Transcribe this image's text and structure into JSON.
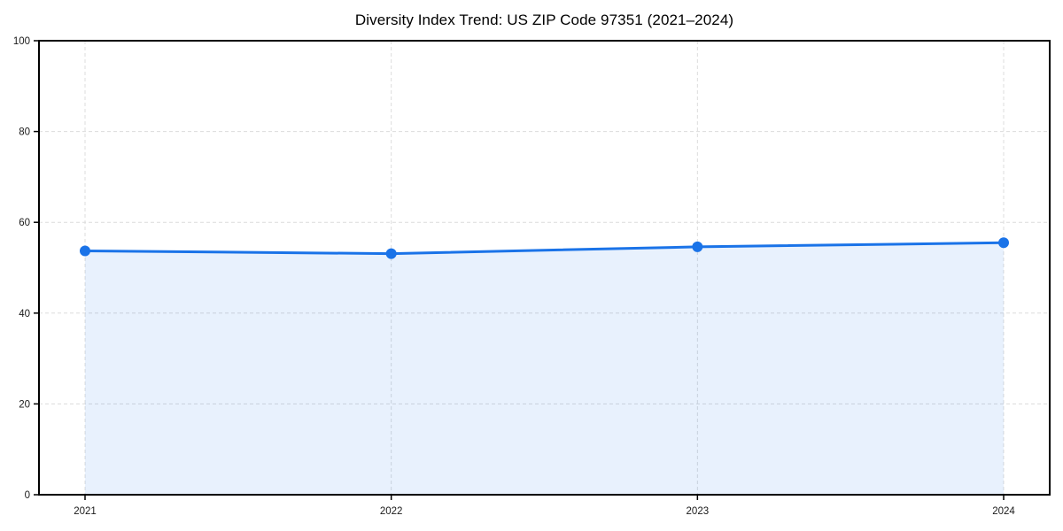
{
  "page": {
    "background_color": "#ffffff"
  },
  "chart_data": {
    "type": "line",
    "title": "Diversity Index Trend: US ZIP Code 97351 (2021–2024)",
    "x": [
      2021,
      2022,
      2023,
      2024
    ],
    "series": [
      {
        "name": "Diversity Index",
        "values": [
          53.7,
          53.1,
          54.6,
          55.5
        ]
      }
    ],
    "xlabel": "",
    "ylabel": "",
    "ylim": [
      0,
      100
    ],
    "yticks": [
      0,
      20,
      40,
      60,
      80,
      100
    ],
    "grid": "dashed-both-axes",
    "legend": "none",
    "area_fill_under_line": true,
    "colors": {
      "line": "#1a73e8",
      "marker": "#1a73e8",
      "area_fill": "rgba(26,115,232,0.10)",
      "gridline": "#dcdcdc",
      "frame": "#000000",
      "tick_label": "#1a1a1a"
    }
  }
}
